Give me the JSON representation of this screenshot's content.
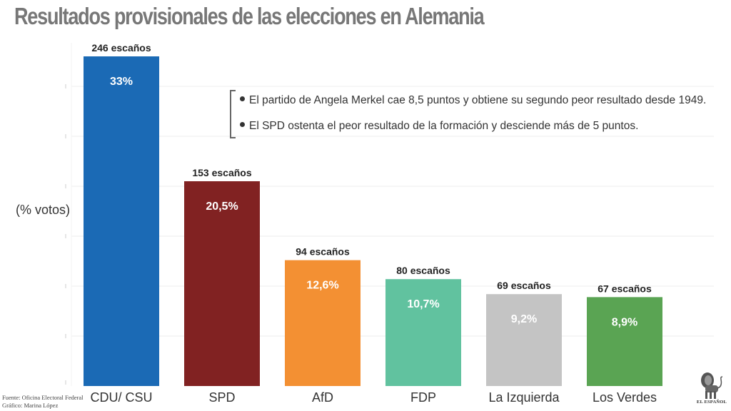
{
  "title": "Resultados provisionales de las elecciones en Alemania",
  "notes": [
    "El partido de Angela Merkel cae 8,5 puntos y obtiene su segundo peor resultado desde 1949.",
    "El SPD ostenta el peor resultado de la formación y desciende más de 5 puntos."
  ],
  "source": {
    "line1": "Fuente: Oficina Electoral Federal",
    "line2": "Gráfico: Marina López"
  },
  "logo": {
    "text": "EL ESPAÑOL",
    "icon": "lion-icon"
  },
  "chart_data": {
    "type": "bar",
    "title": "Resultados provisionales de las elecciones en Alemania",
    "xlabel": "",
    "ylabel": "(% votos)",
    "ylim": [
      0,
      33
    ],
    "grid": true,
    "gridlines_every": 5,
    "categories": [
      "CDU/ CSU",
      "SPD",
      "AfD",
      "FDP",
      "La Izquierda",
      "Los Verdes"
    ],
    "values": [
      33,
      20.5,
      12.6,
      10.7,
      9.2,
      8.9
    ],
    "value_labels": [
      "33%",
      "20,5%",
      "12,6%",
      "10,7%",
      "9,2%",
      "8,9%"
    ],
    "seats": [
      246,
      153,
      94,
      80,
      69,
      67
    ],
    "seat_labels": [
      "246 escaños",
      "153 escaños",
      "94 escaños",
      "80 escaños",
      "69 escaños",
      "67 escaños"
    ],
    "colors": [
      "#1b6ab5",
      "#812222",
      "#f39033",
      "#61c29f",
      "#c4c4c4",
      "#5aa453"
    ]
  }
}
